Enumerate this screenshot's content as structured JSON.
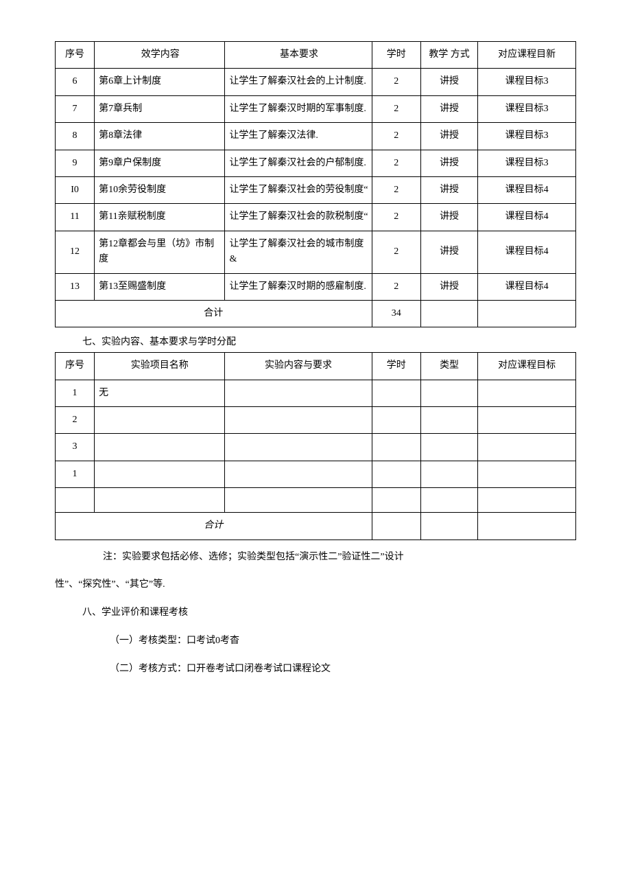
{
  "table1": {
    "header": {
      "seq": "序号",
      "content": "效学内容",
      "req": "基本要求",
      "hours": "学时",
      "method": "教学\n方式",
      "target": "对应课程目新"
    },
    "rows": [
      {
        "seq": "6",
        "content": "第6章上计制度",
        "req": "让学生了解秦汉社会的上计制度.",
        "hours": "2",
        "method": "讲授",
        "target": "课程目标3"
      },
      {
        "seq": "7",
        "content": "第7章兵制",
        "req": "让学生了解秦汉时期的军事制度.",
        "hours": "2",
        "method": "讲授",
        "target": "课程目标3"
      },
      {
        "seq": "8",
        "content": "第8章法律",
        "req": "让学生了解秦汉法律.",
        "hours": "2",
        "method": "讲授",
        "target": "课程目标3"
      },
      {
        "seq": "9",
        "content": "第9章户保制度",
        "req": "让学生了解秦汉社会的户郁制度.",
        "hours": "2",
        "method": "讲授",
        "target": "课程目标3"
      },
      {
        "seq": "I0",
        "content": "第10余劳役制度",
        "req": "让学生了解秦汉社会的劳役制度“",
        "hours": "2",
        "method": "讲授",
        "target": "课程目标4"
      },
      {
        "seq": "11",
        "content": "第11亲赋税制度",
        "req": "让学生了解秦汉社会的款税制度“",
        "hours": "2",
        "method": "讲授",
        "target": "课程目标4"
      },
      {
        "seq": "12",
        "content": "第12章都会与里（坊》市制度",
        "req": "让学生了解秦汉社会的城市制度&",
        "hours": "2",
        "method": "讲授",
        "target": "课程目标4"
      },
      {
        "seq": "13",
        "content": "第13至赐盛制度",
        "req": "让学生了解秦汉时期的感雇制度.",
        "hours": "2",
        "method": "讲授",
        "target": "课程目标4"
      }
    ],
    "total_label": "合计",
    "total_hours": "34"
  },
  "section7_title": "七、实验内容、基本要求与学时分配",
  "table2": {
    "header": {
      "seq": "序号",
      "name": "实验项目名称",
      "content": "实验内容与要求",
      "hours": "学时",
      "type": "类型",
      "target": "对应课程目标"
    },
    "rows": [
      {
        "seq": "1",
        "name": "无",
        "content": "",
        "hours": "",
        "type": "",
        "target": ""
      },
      {
        "seq": "2",
        "name": "",
        "content": "",
        "hours": "",
        "type": "",
        "target": ""
      },
      {
        "seq": "3",
        "name": "",
        "content": "",
        "hours": "",
        "type": "",
        "target": ""
      },
      {
        "seq": "1",
        "name": "",
        "content": "",
        "hours": "",
        "type": "",
        "target": ""
      },
      {
        "seq": "",
        "name": "",
        "content": "",
        "hours": "",
        "type": "",
        "target": ""
      }
    ],
    "total_label": "合计"
  },
  "note_line1": "注：实验要求包括必修、选修；实验类型包括“演示性二”验证性二”设计",
  "note_line2": "性”、“探究性”、“其它”等.",
  "section8_title": "八、学业评价和课程考核",
  "item1": "（一）考核类型：口考试0考杳",
  "item2": "（二）考核方式：口开卷考试口闭卷考试口课程论文"
}
